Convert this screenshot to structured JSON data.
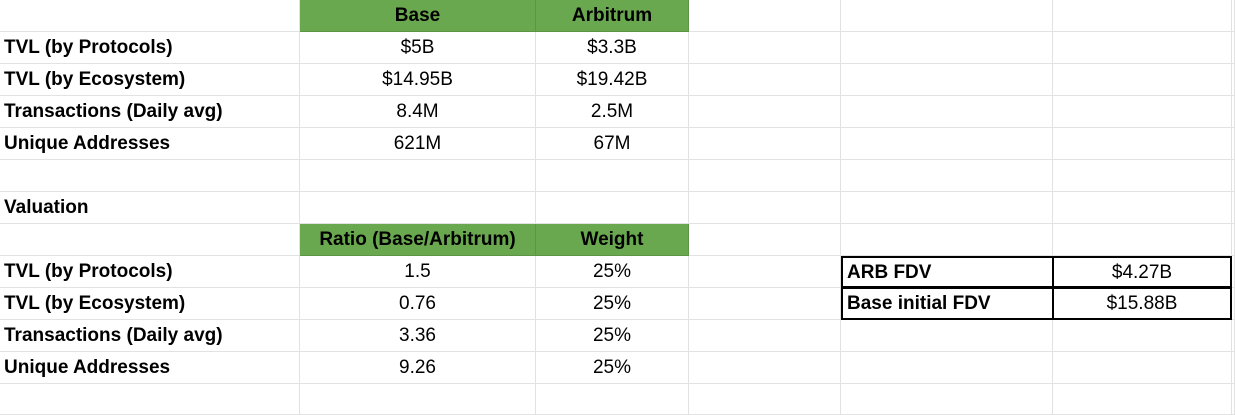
{
  "section1": {
    "headers": [
      "Base",
      "Arbitrum"
    ],
    "rows": [
      {
        "label": "TVL (by Protocols)",
        "base": "$5B",
        "arbitrum": "$3.3B"
      },
      {
        "label": "TVL (by Ecosystem)",
        "base": "$14.95B",
        "arbitrum": "$19.42B"
      },
      {
        "label": "Transactions (Daily avg)",
        "base": "8.4M",
        "arbitrum": "2.5M"
      },
      {
        "label": "Unique Addresses",
        "base": "621M",
        "arbitrum": "67M"
      }
    ]
  },
  "section2": {
    "title": "Valuation",
    "headers": [
      "Ratio (Base/Arbitrum)",
      "Weight"
    ],
    "rows": [
      {
        "label": "TVL (by Protocols)",
        "ratio": "1.5",
        "weight": "25%"
      },
      {
        "label": "TVL (by Ecosystem)",
        "ratio": "0.76",
        "weight": "25%"
      },
      {
        "label": "Transactions (Daily avg)",
        "ratio": "3.36",
        "weight": "25%"
      },
      {
        "label": "Unique Addresses",
        "ratio": "9.26",
        "weight": "25%"
      }
    ]
  },
  "fdv_table": [
    {
      "label": "ARB FDV",
      "value": "$4.27B"
    },
    {
      "label": "Base initial FDV",
      "value": "$15.88B"
    }
  ],
  "colors": {
    "header_green": "#6aa84f",
    "gridline": "#e2e2e2"
  }
}
